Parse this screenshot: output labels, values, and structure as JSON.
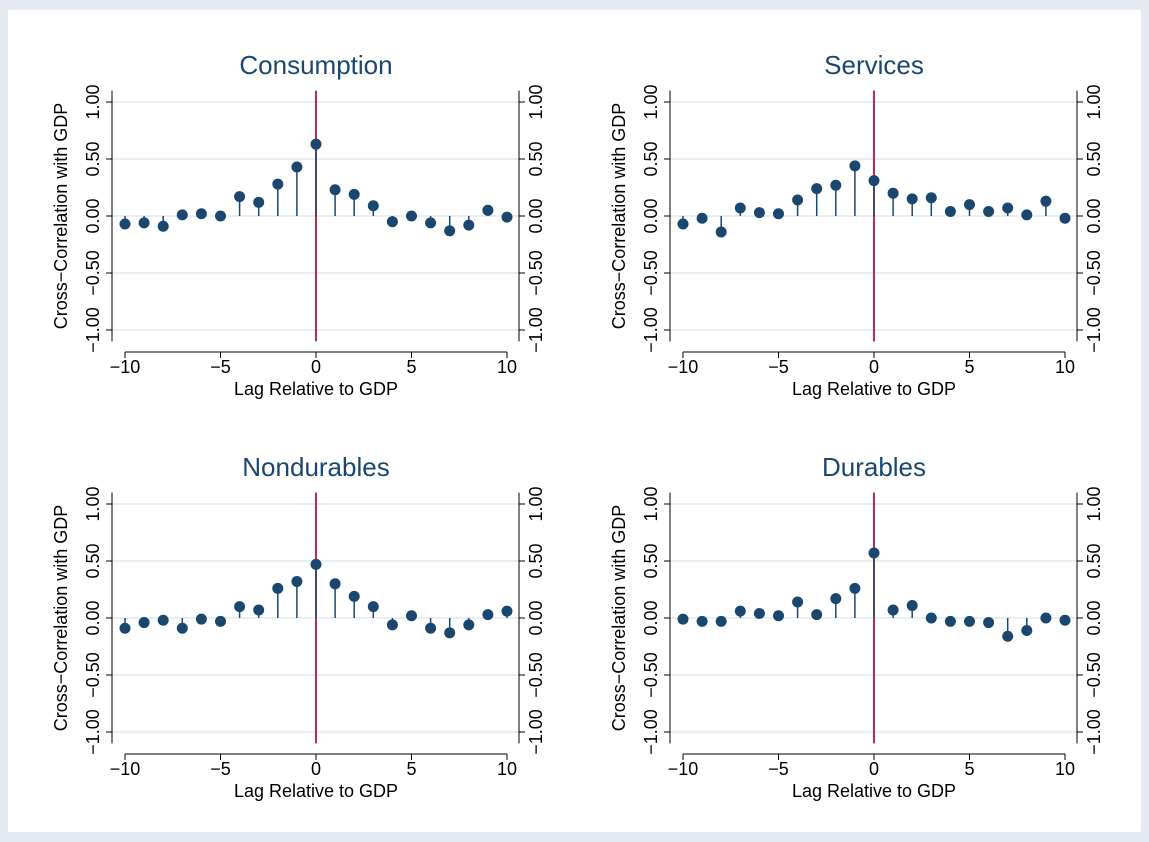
{
  "chart_data": [
    {
      "type": "stem",
      "title": "Consumption",
      "xlabel": "Lag Relative to GDP",
      "ylabel": "Cross−Correlation with GDP",
      "x": [
        -10,
        -9,
        -8,
        -7,
        -6,
        -5,
        -4,
        -3,
        -2,
        -1,
        0,
        1,
        2,
        3,
        4,
        5,
        6,
        7,
        8,
        9,
        10
      ],
      "values": [
        -0.07,
        -0.06,
        -0.09,
        0.01,
        0.02,
        0.0,
        0.17,
        0.12,
        0.28,
        0.43,
        0.63,
        0.23,
        0.19,
        0.09,
        -0.05,
        0.0,
        -0.06,
        -0.13,
        -0.08,
        0.05,
        -0.01
      ],
      "color": "#1a476f",
      "reference_line": {
        "x": 0,
        "color": "#b0173f"
      },
      "grid": true,
      "xlim": [
        -10,
        10
      ],
      "xticks": [
        {
          "value": -10,
          "label": "−10"
        },
        {
          "value": -5,
          "label": "−5"
        },
        0,
        5,
        10
      ],
      "ylim": [
        -1.1,
        1.1
      ],
      "yticks": [
        {
          "value": -1,
          "label": "−1.00"
        },
        {
          "value": -0.5,
          "label": "−0.50"
        },
        {
          "value": 0,
          "label": "0.00"
        },
        {
          "value": 0.5,
          "label": "0.50"
        },
        {
          "value": 1,
          "label": "1.00"
        }
      ]
    },
    {
      "type": "stem",
      "title": "Services",
      "xlabel": "Lag Relative to GDP",
      "ylabel": "Cross−Correlation with GDP",
      "x": [
        -10,
        -9,
        -8,
        -7,
        -6,
        -5,
        -4,
        -3,
        -2,
        -1,
        0,
        1,
        2,
        3,
        4,
        5,
        6,
        7,
        8,
        9,
        10
      ],
      "values": [
        -0.07,
        -0.02,
        -0.14,
        0.07,
        0.03,
        0.02,
        0.14,
        0.24,
        0.27,
        0.44,
        0.31,
        0.2,
        0.15,
        0.16,
        0.04,
        0.1,
        0.04,
        0.07,
        0.01,
        0.13,
        -0.02
      ],
      "color": "#1a476f",
      "reference_line": {
        "x": 0,
        "color": "#b0173f"
      },
      "grid": true,
      "xlim": [
        -10,
        10
      ],
      "xticks": [
        {
          "value": -10,
          "label": "−10"
        },
        {
          "value": -5,
          "label": "−5"
        },
        0,
        5,
        10
      ],
      "ylim": [
        -1.1,
        1.1
      ],
      "yticks": [
        {
          "value": -1,
          "label": "−1.00"
        },
        {
          "value": -0.5,
          "label": "−0.50"
        },
        {
          "value": 0,
          "label": "0.00"
        },
        {
          "value": 0.5,
          "label": "0.50"
        },
        {
          "value": 1,
          "label": "1.00"
        }
      ]
    },
    {
      "type": "stem",
      "title": "Nondurables",
      "xlabel": "Lag Relative to GDP",
      "ylabel": "Cross−Correlation with GDP",
      "x": [
        -10,
        -9,
        -8,
        -7,
        -6,
        -5,
        -4,
        -3,
        -2,
        -1,
        0,
        1,
        2,
        3,
        4,
        5,
        6,
        7,
        8,
        9,
        10
      ],
      "values": [
        -0.09,
        -0.04,
        -0.02,
        -0.09,
        -0.01,
        -0.03,
        0.1,
        0.07,
        0.26,
        0.32,
        0.47,
        0.3,
        0.19,
        0.1,
        -0.06,
        0.02,
        -0.09,
        -0.13,
        -0.06,
        0.03,
        0.06
      ],
      "color": "#1a476f",
      "reference_line": {
        "x": 0,
        "color": "#b0173f"
      },
      "grid": true,
      "xlim": [
        -10,
        10
      ],
      "xticks": [
        {
          "value": -10,
          "label": "−10"
        },
        {
          "value": -5,
          "label": "−5"
        },
        0,
        5,
        10
      ],
      "ylim": [
        -1.1,
        1.1
      ],
      "yticks": [
        {
          "value": -1,
          "label": "−1.00"
        },
        {
          "value": -0.5,
          "label": "−0.50"
        },
        {
          "value": 0,
          "label": "0.00"
        },
        {
          "value": 0.5,
          "label": "0.50"
        },
        {
          "value": 1,
          "label": "1.00"
        }
      ]
    },
    {
      "type": "stem",
      "title": "Durables",
      "xlabel": "Lag Relative to GDP",
      "ylabel": "Cross−Correlation with GDP",
      "x": [
        -10,
        -9,
        -8,
        -7,
        -6,
        -5,
        -4,
        -3,
        -2,
        -1,
        0,
        1,
        2,
        3,
        4,
        5,
        6,
        7,
        8,
        9,
        10
      ],
      "values": [
        -0.01,
        -0.03,
        -0.03,
        0.06,
        0.04,
        0.02,
        0.14,
        0.03,
        0.17,
        0.26,
        0.57,
        0.07,
        0.11,
        0.0,
        -0.03,
        -0.03,
        -0.04,
        -0.16,
        -0.11,
        0.0,
        -0.02
      ],
      "color": "#1a476f",
      "reference_line": {
        "x": 0,
        "color": "#b0173f"
      },
      "grid": true,
      "xlim": [
        -10,
        10
      ],
      "xticks": [
        {
          "value": -10,
          "label": "−10"
        },
        {
          "value": -5,
          "label": "−5"
        },
        0,
        5,
        10
      ],
      "ylim": [
        -1.1,
        1.1
      ],
      "yticks": [
        {
          "value": -1,
          "label": "−1.00"
        },
        {
          "value": -0.5,
          "label": "−0.50"
        },
        {
          "value": 0,
          "label": "0.00"
        },
        {
          "value": 0.5,
          "label": "0.50"
        },
        {
          "value": 1,
          "label": "1.00"
        }
      ]
    }
  ]
}
